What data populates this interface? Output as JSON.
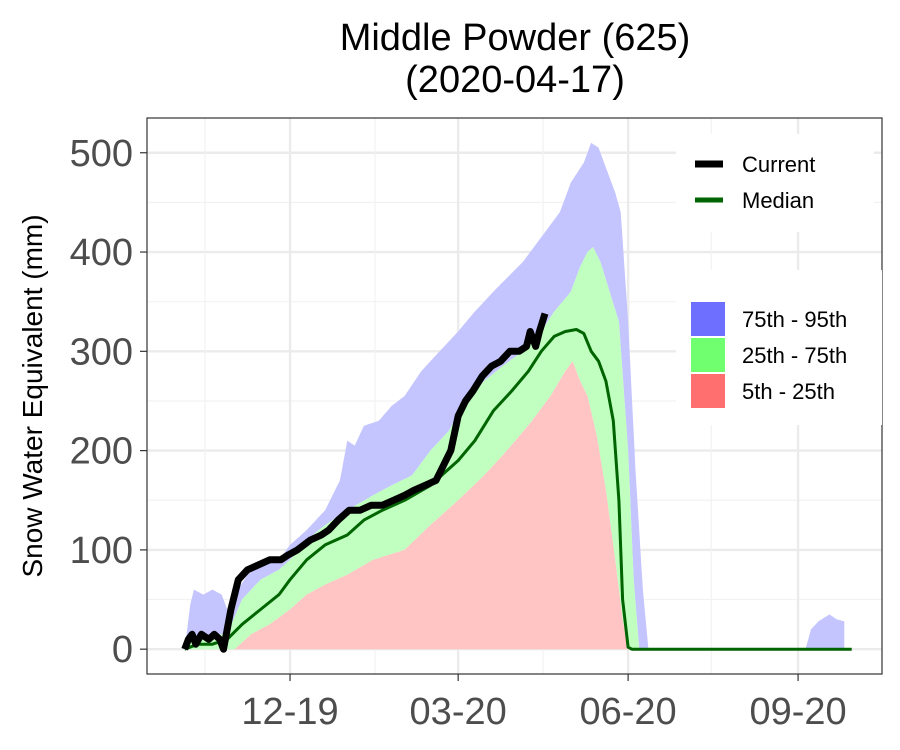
{
  "chart_data": {
    "type": "area",
    "title": "Middle Powder (625)",
    "subtitle": "(2020-04-17)",
    "xlabel": "",
    "ylabel": "Snow Water Equivalent (mm)",
    "x_range": [
      "2019-10-01",
      "2020-09-30"
    ],
    "ylim": [
      -25,
      535
    ],
    "y_ticks": [
      0,
      100,
      200,
      300,
      400,
      500
    ],
    "x_ticks": [
      {
        "date": "2019-12-01",
        "label": "12-19"
      },
      {
        "date": "2020-03-01",
        "label": "03-20"
      },
      {
        "date": "2020-06-01",
        "label": "06-20"
      },
      {
        "date": "2020-09-01",
        "label": "09-20"
      }
    ],
    "grid": true,
    "legend": {
      "placement": "right",
      "lines": [
        {
          "key": "current",
          "label": "Current",
          "color": "#000000"
        },
        {
          "key": "median",
          "label": "Median",
          "color": "#006400"
        }
      ],
      "bands": [
        {
          "key": "p75_95",
          "label": "75th - 95th",
          "color": "#6f6fff"
        },
        {
          "key": "p25_75",
          "label": "25th - 75th",
          "color": "#6fff6f"
        },
        {
          "key": "p05_25",
          "label": "5th - 25th",
          "color": "#ff6f6f"
        }
      ]
    },
    "band_colors": {
      "p75_95": "#c4c4ff",
      "p25_75": "#c0ffc0",
      "p05_25": "#ffc4c4"
    },
    "series": {
      "p95": [
        [
          "2019-10-05",
          0
        ],
        [
          "2019-10-08",
          45
        ],
        [
          "2019-10-10",
          60
        ],
        [
          "2019-10-15",
          55
        ],
        [
          "2019-10-20",
          60
        ],
        [
          "2019-10-25",
          55
        ],
        [
          "2019-10-28",
          40
        ],
        [
          "2019-11-01",
          55
        ],
        [
          "2019-11-08",
          75
        ],
        [
          "2019-11-15",
          85
        ],
        [
          "2019-11-25",
          90
        ],
        [
          "2019-12-01",
          105
        ],
        [
          "2019-12-10",
          120
        ],
        [
          "2019-12-20",
          140
        ],
        [
          "2019-12-28",
          170
        ],
        [
          "2020-01-01",
          210
        ],
        [
          "2020-01-05",
          205
        ],
        [
          "2020-01-10",
          225
        ],
        [
          "2020-01-18",
          230
        ],
        [
          "2020-01-25",
          245
        ],
        [
          "2020-02-01",
          255
        ],
        [
          "2020-02-10",
          280
        ],
        [
          "2020-02-20",
          300
        ],
        [
          "2020-03-01",
          320
        ],
        [
          "2020-03-10",
          340
        ],
        [
          "2020-03-20",
          360
        ],
        [
          "2020-03-28",
          375
        ],
        [
          "2020-04-05",
          390
        ],
        [
          "2020-04-15",
          415
        ],
        [
          "2020-04-25",
          440
        ],
        [
          "2020-05-01",
          470
        ],
        [
          "2020-05-08",
          490
        ],
        [
          "2020-05-12",
          510
        ],
        [
          "2020-05-16",
          505
        ],
        [
          "2020-05-20",
          485
        ],
        [
          "2020-05-25",
          460
        ],
        [
          "2020-05-28",
          440
        ],
        [
          "2020-06-01",
          330
        ],
        [
          "2020-06-05",
          180
        ],
        [
          "2020-06-09",
          60
        ],
        [
          "2020-06-12",
          0
        ],
        [
          "2020-09-05",
          0
        ],
        [
          "2020-09-08",
          20
        ],
        [
          "2020-09-12",
          28
        ],
        [
          "2020-09-18",
          35
        ],
        [
          "2020-09-22",
          30
        ],
        [
          "2020-09-26",
          28
        ]
      ],
      "p75": [
        [
          "2019-10-05",
          0
        ],
        [
          "2019-10-10",
          10
        ],
        [
          "2019-10-20",
          15
        ],
        [
          "2019-10-28",
          15
        ],
        [
          "2019-11-05",
          50
        ],
        [
          "2019-11-15",
          70
        ],
        [
          "2019-11-25",
          80
        ],
        [
          "2019-12-01",
          90
        ],
        [
          "2019-12-10",
          110
        ],
        [
          "2019-12-20",
          125
        ],
        [
          "2020-01-01",
          140
        ],
        [
          "2020-01-15",
          155
        ],
        [
          "2020-01-25",
          165
        ],
        [
          "2020-02-05",
          175
        ],
        [
          "2020-02-15",
          200
        ],
        [
          "2020-02-25",
          220
        ],
        [
          "2020-03-05",
          250
        ],
        [
          "2020-03-15",
          270
        ],
        [
          "2020-03-25",
          285
        ],
        [
          "2020-04-05",
          300
        ],
        [
          "2020-04-15",
          320
        ],
        [
          "2020-04-22",
          340
        ],
        [
          "2020-05-01",
          360
        ],
        [
          "2020-05-06",
          385
        ],
        [
          "2020-05-10",
          400
        ],
        [
          "2020-05-13",
          405
        ],
        [
          "2020-05-17",
          390
        ],
        [
          "2020-05-22",
          360
        ],
        [
          "2020-05-27",
          330
        ],
        [
          "2020-06-01",
          200
        ],
        [
          "2020-06-04",
          70
        ],
        [
          "2020-06-07",
          0
        ]
      ],
      "p25": [
        [
          "2019-11-01",
          0
        ],
        [
          "2019-11-10",
          15
        ],
        [
          "2019-11-20",
          25
        ],
        [
          "2019-12-01",
          40
        ],
        [
          "2019-12-10",
          55
        ],
        [
          "2019-12-20",
          65
        ],
        [
          "2020-01-01",
          75
        ],
        [
          "2020-01-15",
          90
        ],
        [
          "2020-02-01",
          100
        ],
        [
          "2020-02-15",
          125
        ],
        [
          "2020-03-01",
          150
        ],
        [
          "2020-03-15",
          175
        ],
        [
          "2020-03-25",
          195
        ],
        [
          "2020-04-01",
          210
        ],
        [
          "2020-04-10",
          230
        ],
        [
          "2020-04-20",
          255
        ],
        [
          "2020-04-28",
          280
        ],
        [
          "2020-05-02",
          290
        ],
        [
          "2020-05-06",
          270
        ],
        [
          "2020-05-10",
          255
        ],
        [
          "2020-05-15",
          215
        ],
        [
          "2020-05-20",
          160
        ],
        [
          "2020-05-25",
          90
        ],
        [
          "2020-05-29",
          30
        ],
        [
          "2020-06-01",
          0
        ]
      ],
      "p05": [
        [
          "2019-10-01",
          0
        ],
        [
          "2020-09-30",
          0
        ]
      ],
      "median": [
        [
          "2019-10-05",
          0
        ],
        [
          "2019-10-12",
          5
        ],
        [
          "2019-10-20",
          5
        ],
        [
          "2019-10-28",
          10
        ],
        [
          "2019-11-05",
          25
        ],
        [
          "2019-11-15",
          40
        ],
        [
          "2019-11-25",
          55
        ],
        [
          "2019-12-01",
          70
        ],
        [
          "2019-12-10",
          90
        ],
        [
          "2019-12-20",
          105
        ],
        [
          "2020-01-01",
          115
        ],
        [
          "2020-01-10",
          130
        ],
        [
          "2020-01-20",
          140
        ],
        [
          "2020-02-01",
          150
        ],
        [
          "2020-02-15",
          165
        ],
        [
          "2020-03-01",
          190
        ],
        [
          "2020-03-10",
          210
        ],
        [
          "2020-03-20",
          240
        ],
        [
          "2020-03-30",
          260
        ],
        [
          "2020-04-08",
          280
        ],
        [
          "2020-04-15",
          300
        ],
        [
          "2020-04-22",
          315
        ],
        [
          "2020-04-28",
          320
        ],
        [
          "2020-05-04",
          322
        ],
        [
          "2020-05-08",
          318
        ],
        [
          "2020-05-12",
          300
        ],
        [
          "2020-05-16",
          290
        ],
        [
          "2020-05-20",
          270
        ],
        [
          "2020-05-24",
          230
        ],
        [
          "2020-05-27",
          150
        ],
        [
          "2020-05-29",
          50
        ],
        [
          "2020-06-01",
          2
        ],
        [
          "2020-06-03",
          0
        ],
        [
          "2020-09-30",
          0
        ]
      ],
      "current": [
        [
          "2019-10-05",
          0
        ],
        [
          "2019-10-07",
          10
        ],
        [
          "2019-10-09",
          15
        ],
        [
          "2019-10-11",
          5
        ],
        [
          "2019-10-14",
          15
        ],
        [
          "2019-10-18",
          10
        ],
        [
          "2019-10-21",
          15
        ],
        [
          "2019-10-24",
          10
        ],
        [
          "2019-10-26",
          0
        ],
        [
          "2019-10-30",
          40
        ],
        [
          "2019-11-03",
          70
        ],
        [
          "2019-11-08",
          80
        ],
        [
          "2019-11-14",
          85
        ],
        [
          "2019-11-20",
          90
        ],
        [
          "2019-11-26",
          90
        ],
        [
          "2019-11-30",
          95
        ],
        [
          "2019-12-05",
          100
        ],
        [
          "2019-12-12",
          110
        ],
        [
          "2019-12-18",
          115
        ],
        [
          "2019-12-22",
          120
        ],
        [
          "2019-12-27",
          130
        ],
        [
          "2020-01-02",
          140
        ],
        [
          "2020-01-08",
          140
        ],
        [
          "2020-01-14",
          145
        ],
        [
          "2020-01-20",
          145
        ],
        [
          "2020-01-26",
          150
        ],
        [
          "2020-02-01",
          155
        ],
        [
          "2020-02-06",
          160
        ],
        [
          "2020-02-12",
          165
        ],
        [
          "2020-02-18",
          170
        ],
        [
          "2020-02-22",
          185
        ],
        [
          "2020-02-26",
          200
        ],
        [
          "2020-03-01",
          235
        ],
        [
          "2020-03-05",
          250
        ],
        [
          "2020-03-09",
          260
        ],
        [
          "2020-03-14",
          275
        ],
        [
          "2020-03-19",
          285
        ],
        [
          "2020-03-24",
          290
        ],
        [
          "2020-03-29",
          300
        ],
        [
          "2020-04-03",
          300
        ],
        [
          "2020-04-07",
          305
        ],
        [
          "2020-04-09",
          320
        ],
        [
          "2020-04-12",
          305
        ],
        [
          "2020-04-14",
          320
        ],
        [
          "2020-04-17",
          338
        ]
      ]
    }
  }
}
